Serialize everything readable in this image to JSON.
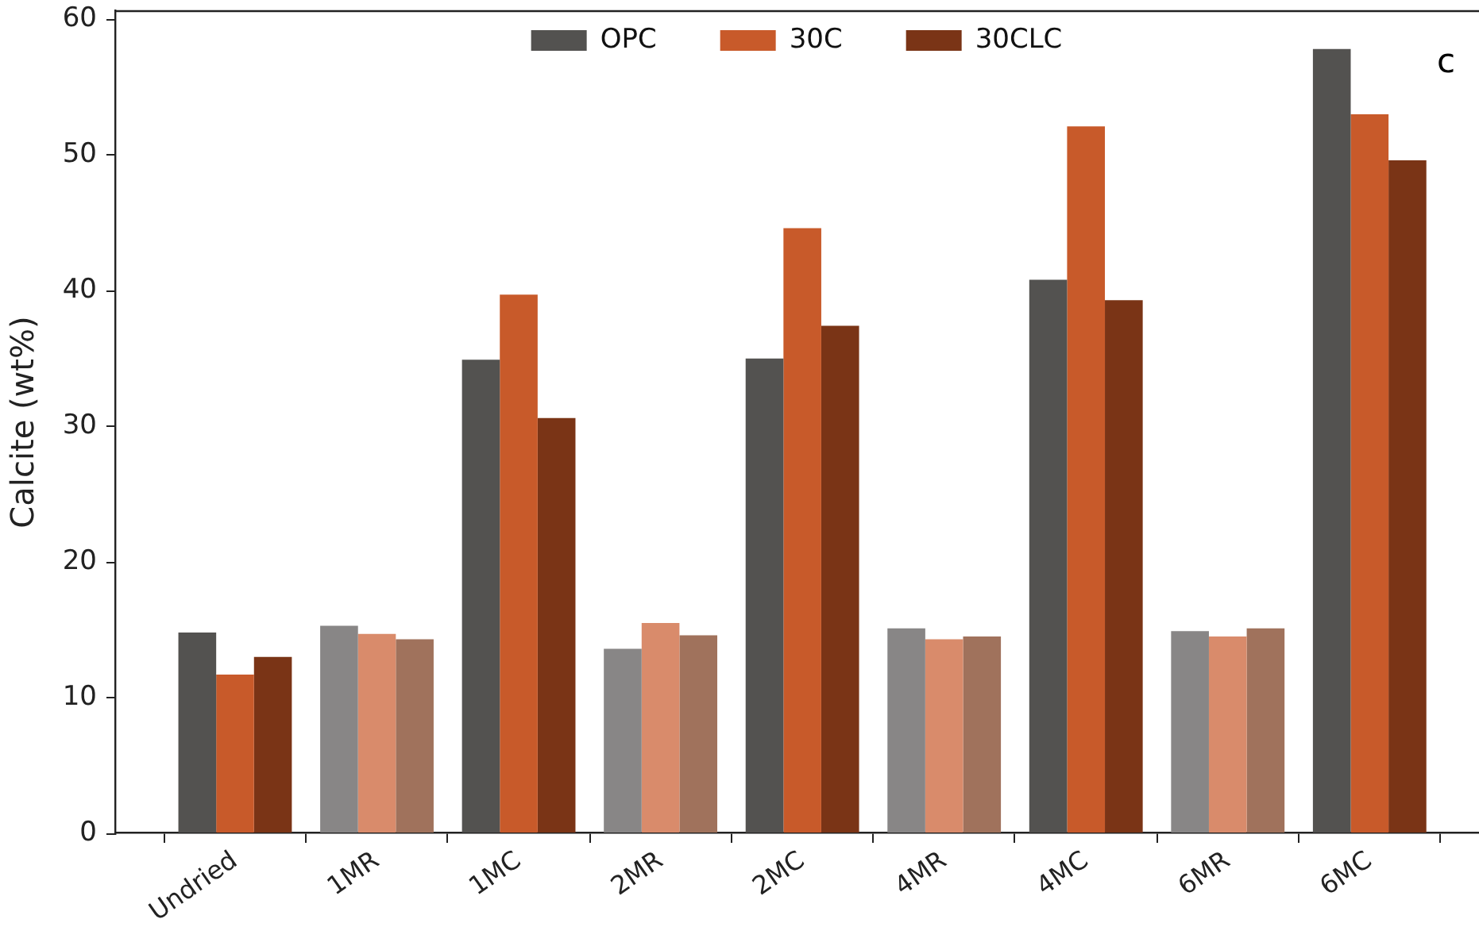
{
  "chart_data": {
    "type": "bar",
    "ylabel": "Calcite (wt%)",
    "annotations": [
      "c"
    ],
    "categories": [
      "Undried",
      "1MR",
      "1MC",
      "2MR",
      "2MC",
      "4MR",
      "4MC",
      "6MR",
      "6MC"
    ],
    "series": [
      {
        "name": "OPC",
        "color": "#535250",
        "colors": [
          "#535250",
          "#888686",
          "#535250",
          "#888686",
          "#535250",
          "#888686",
          "#535250",
          "#888686",
          "#535250"
        ],
        "values": [
          14.8,
          15.3,
          34.9,
          13.6,
          35.0,
          15.1,
          40.8,
          14.9,
          57.8
        ]
      },
      {
        "name": "30C",
        "color": "#c85a2a",
        "colors": [
          "#c85a2a",
          "#d98b6b",
          "#c85a2a",
          "#d98b6b",
          "#c85a2a",
          "#d98b6b",
          "#c85a2a",
          "#d98b6b",
          "#c85a2a"
        ],
        "values": [
          11.7,
          14.7,
          39.7,
          15.5,
          44.6,
          14.3,
          52.1,
          14.5,
          53.0
        ]
      },
      {
        "name": "30CLC",
        "color": "#7a3416",
        "colors": [
          "#7a3416",
          "#a0725c",
          "#7a3416",
          "#a0725c",
          "#7a3416",
          "#a0725c",
          "#7a3416",
          "#a0725c",
          "#7a3416"
        ],
        "values": [
          13.0,
          14.3,
          30.6,
          14.6,
          37.4,
          14.5,
          39.3,
          15.1,
          49.6
        ]
      }
    ],
    "ylim": [
      0,
      60.6
    ],
    "yticks": [
      0,
      10,
      20,
      30,
      40,
      50,
      60
    ],
    "legend": "top"
  }
}
